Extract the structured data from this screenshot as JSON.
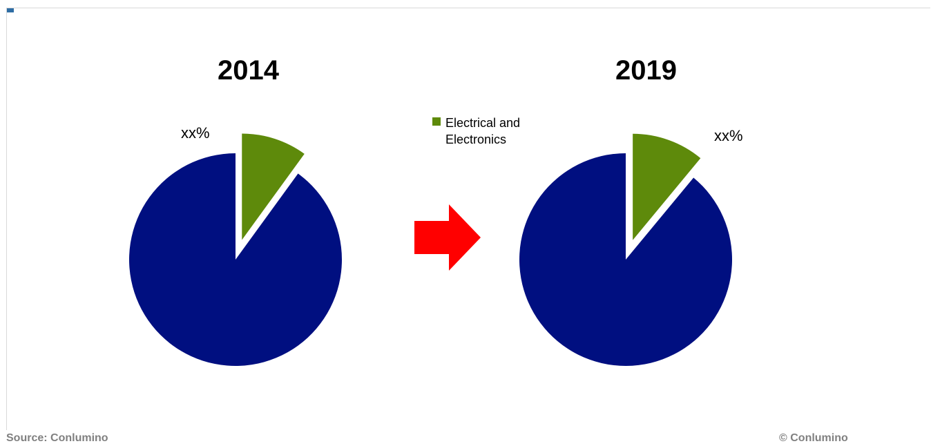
{
  "chart_data": [
    {
      "type": "pie",
      "title": "2014",
      "slices": [
        {
          "name": "Electrical and Electronics",
          "value": 10,
          "color": "#5e8a0b",
          "label": "xx%",
          "exploded": true
        },
        {
          "name": "",
          "value": 90,
          "color": "#000f80"
        }
      ],
      "legend": "center"
    },
    {
      "type": "pie",
      "title": "2019",
      "slices": [
        {
          "name": "Electrical and Electronics",
          "value": 11,
          "color": "#5e8a0b",
          "label": "xx%",
          "exploded": true
        },
        {
          "name": "",
          "value": 89,
          "color": "#000f80"
        }
      ],
      "legend": "center"
    }
  ],
  "legend": {
    "label": "Electrical and Electronics",
    "color": "#5e8a0b"
  },
  "arrow_color": "#ff0000",
  "footer": {
    "source": "Source: Conlumino",
    "copyright": "© Conlumino"
  }
}
